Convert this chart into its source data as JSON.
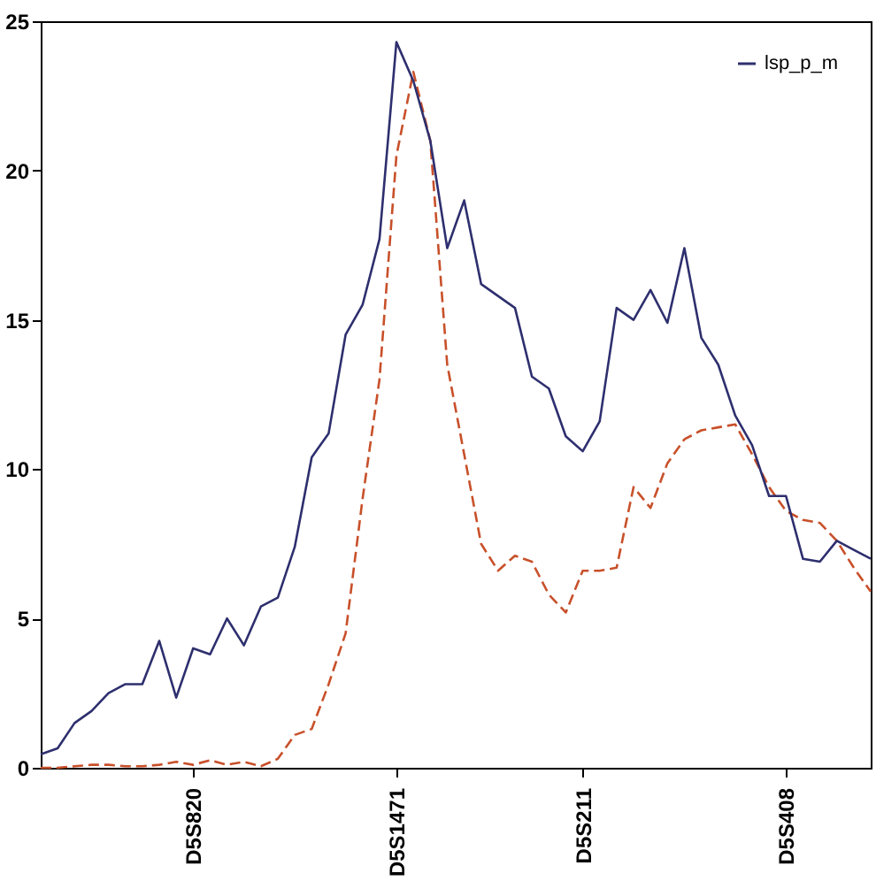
{
  "chart_data": {
    "type": "line",
    "ylim": [
      0,
      25
    ],
    "yticks": [
      0,
      5,
      10,
      15,
      20,
      25
    ],
    "categories": [
      null,
      null,
      null,
      null,
      null,
      null,
      null,
      null,
      null,
      "D5S820",
      null,
      null,
      null,
      null,
      null,
      null,
      null,
      null,
      null,
      null,
      null,
      "D5S1471",
      null,
      null,
      null,
      null,
      null,
      null,
      null,
      null,
      null,
      null,
      "D5S211",
      null,
      null,
      null,
      null,
      null,
      null,
      null,
      null,
      null,
      null,
      null,
      "D5S408",
      null,
      null,
      null,
      null,
      null
    ],
    "legend": "top right",
    "grid": false,
    "series": [
      {
        "color": "#c8502a",
        "line_style": "dashed",
        "values": [
          0,
          0,
          0.05,
          0.1,
          0.1,
          0.05,
          0.05,
          0.1,
          0.2,
          0.1,
          0.25,
          0.1,
          0.2,
          0.05,
          0.3,
          1.1,
          1.3,
          2.8,
          4.5,
          9,
          13,
          20.5,
          23.3,
          21,
          13.5,
          10.5,
          7.5,
          6.6,
          7.1,
          6.9,
          5.8,
          5.2,
          6.6,
          6.6,
          6.7,
          9.4,
          8.7,
          10.2,
          11,
          11.3,
          11.4,
          11.5,
          10.5,
          9.4,
          8.6,
          8.3,
          8.2,
          7.6,
          6.7,
          5.9
        ]
      },
      {
        "name": "lsp_p_m",
        "color": "#2e2f6e",
        "line_style": "solid",
        "values": [
          0.45,
          0.65,
          1.5,
          1.9,
          2.5,
          2.8,
          2.8,
          4.25,
          2.35,
          4.0,
          3.8,
          5.0,
          4.1,
          5.4,
          5.7,
          7.4,
          10.4,
          11.2,
          14.5,
          15.5,
          17.7,
          24.3,
          23.0,
          21.0,
          17.4,
          19.0,
          16.2,
          15.8,
          15.4,
          13.1,
          12.7,
          11.1,
          10.6,
          11.6,
          15.4,
          15.0,
          16.0,
          14.9,
          17.4,
          14.4,
          13.5,
          11.8,
          10.8,
          9.1,
          9.1,
          7.0,
          6.9,
          7.6,
          7.3,
          7.0
        ]
      }
    ]
  }
}
